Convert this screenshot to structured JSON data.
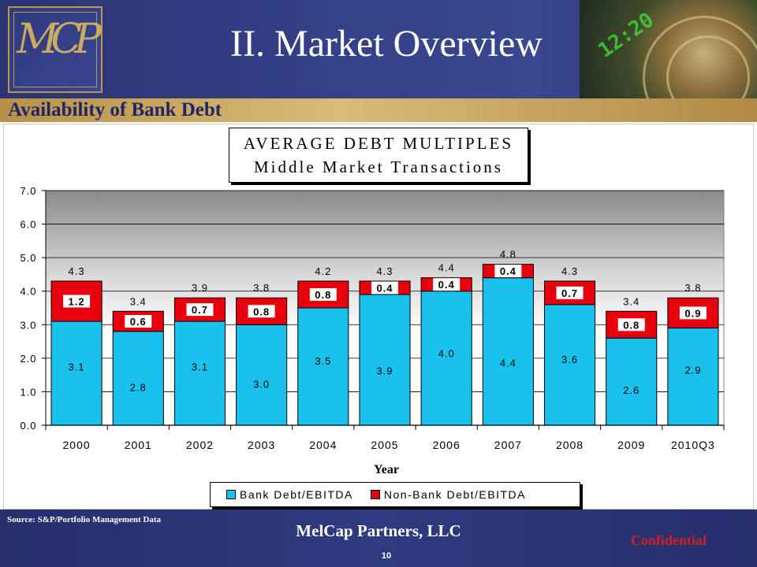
{
  "header": {
    "logo_text": "MCP",
    "title": "II.  Market Overview",
    "subtitle": "Availability of Bank Debt"
  },
  "chart_title": {
    "line1": "AVERAGE DEBT MULTIPLES",
    "line2": "Middle Market Transactions"
  },
  "chart_data": {
    "type": "bar",
    "stacked": true,
    "categories": [
      "2000",
      "2001",
      "2002",
      "2003",
      "2004",
      "2005",
      "2006",
      "2007",
      "2008",
      "2009",
      "2010Q3"
    ],
    "series": [
      {
        "name": "Bank Debt/EBITDA",
        "color": "#19c2ec",
        "values": [
          3.1,
          2.8,
          3.1,
          3.0,
          3.5,
          3.9,
          4.0,
          4.4,
          3.6,
          2.6,
          2.9
        ]
      },
      {
        "name": "Non-Bank Debt/EBITDA",
        "color": "#e8000c",
        "values": [
          1.2,
          0.6,
          0.7,
          0.8,
          0.8,
          0.4,
          0.4,
          0.4,
          0.7,
          0.8,
          0.9
        ]
      }
    ],
    "totals": [
      4.3,
      3.4,
      3.9,
      3.8,
      4.2,
      4.3,
      4.4,
      4.8,
      4.3,
      3.4,
      3.8
    ],
    "ylim": [
      0,
      7
    ],
    "yticks": [
      "0.0",
      "1.0",
      "2.0",
      "3.0",
      "4.0",
      "5.0",
      "6.0",
      "7.0"
    ],
    "xlabel": "Year",
    "ylabel": "",
    "grid": true,
    "legend_position": "bottom"
  },
  "footer": {
    "source": "Source: S&P/Portfolio Management Data",
    "company": "MelCap Partners, LLC",
    "confidential": "Confidential",
    "page": "10"
  }
}
